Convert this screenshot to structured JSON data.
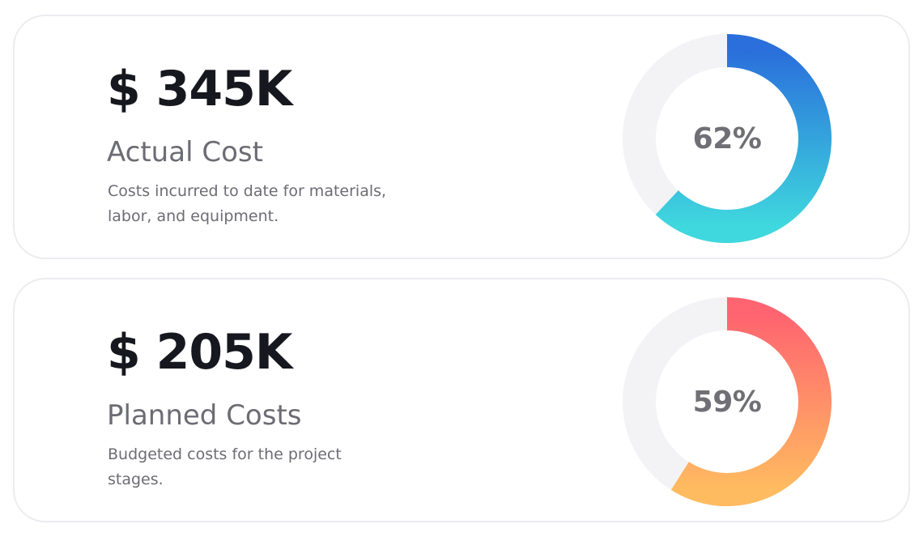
{
  "cards": [
    {
      "amount": "$ 345K",
      "title": "Actual Cost",
      "description": "Costs incurred to date for materials, labor, and equipment.",
      "percent_label": "62%",
      "percent": 62,
      "gradient": [
        "#2a6fdb",
        "#3fd8de"
      ]
    },
    {
      "amount": "$ 205K",
      "title": "Planned Costs",
      "description": "Budgeted costs for the project stages.",
      "percent_label": "59%",
      "percent": 59,
      "gradient": [
        "#ff6470",
        "#ffbb60"
      ]
    }
  ],
  "colors": {
    "track": "#f3f3f5",
    "amount_text": "#17171f",
    "secondary_text": "#6c6c74",
    "card_border": "#ececf0"
  }
}
